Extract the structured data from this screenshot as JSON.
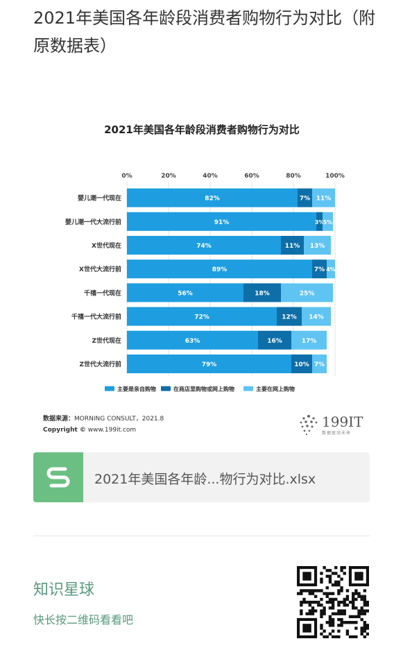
{
  "post": {
    "title": "2021年美国各年龄段消费者购物行为对比（附原数据表）"
  },
  "chart_data": {
    "type": "bar",
    "stacked": true,
    "orientation": "horizontal",
    "title": "2021年美国各年龄段消费者购物行为对比",
    "xlim": [
      0,
      100
    ],
    "x_ticks": [
      "0%",
      "20%",
      "40%",
      "60%",
      "80%",
      "100%"
    ],
    "x_axis_position": "top",
    "legend_position": "bottom",
    "categories": [
      "婴儿潮一代现在",
      "婴儿潮一代大流行前",
      "X世代现在",
      "X世代大流行前",
      "千禧一代现在",
      "千禧一代大流行前",
      "Z世代现在",
      "Z世代大流行前"
    ],
    "series": [
      {
        "name": "主要是亲自购物",
        "color": "#1e9ee0",
        "values": [
          82,
          91,
          74,
          89,
          56,
          72,
          63,
          79
        ],
        "labels": [
          "82%",
          "91%",
          "74%",
          "89%",
          "56%",
          "72%",
          "63%",
          "79%"
        ]
      },
      {
        "name": "在商店里购物或网上购物",
        "color": "#0e6ea8",
        "values": [
          7,
          3,
          11,
          7,
          18,
          12,
          16,
          10
        ],
        "labels": [
          "7%",
          "3%",
          "11%",
          "7%",
          "18%",
          "12%",
          "16%",
          "10%"
        ]
      },
      {
        "name": "主要在网上购物",
        "color": "#5fc4f2",
        "values": [
          11,
          5,
          13,
          4,
          25,
          14,
          17,
          7
        ],
        "labels": [
          "11%",
          "5%",
          "13%",
          "4%",
          "25%",
          "14%",
          "17%",
          "7%"
        ]
      }
    ]
  },
  "source": {
    "label": "数据来源：",
    "text": "MORNING CONSULT，2021.8",
    "copyright_label": "Copyright ©",
    "copyright_url": "www.199it.com"
  },
  "logo": {
    "text": "199IT",
    "sub": "数据驱动未来"
  },
  "file": {
    "name": "2021年美国各年龄...物行为对比.xlsx",
    "icon": "spreadsheet-s-icon",
    "icon_color": "#6bbf82"
  },
  "planet": {
    "title": "知识星球",
    "subtitle": "快长按二维码看看吧",
    "qr_icon": "qr-code-icon"
  }
}
